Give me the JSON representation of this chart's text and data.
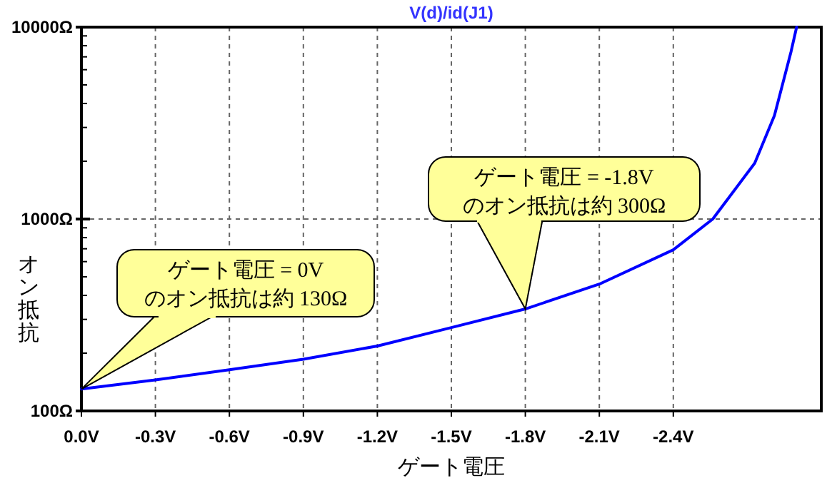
{
  "chart_data": {
    "type": "line",
    "title": "V(d)/id(J1)",
    "xlabel": "ゲート電圧",
    "ylabel": "オン抵抗",
    "x": [
      0,
      -0.3,
      -0.6,
      -0.9,
      -1.2,
      -1.5,
      -1.8,
      -2.1,
      -2.4,
      -2.56,
      -2.73,
      -2.81,
      -2.877,
      -2.9
    ],
    "series": [
      {
        "color": "#0000ff",
        "values": [
          130,
          145,
          164,
          186,
          218,
          272,
          340,
          458,
          691,
          1000,
          1955,
          3460,
          7410,
          10000
        ]
      }
    ],
    "xlim": [
      0,
      -3.0
    ],
    "xticks": [
      {
        "value": 0,
        "label": "0.0V"
      },
      {
        "value": -0.3,
        "label": "-0.3V"
      },
      {
        "value": -0.6,
        "label": "-0.6V"
      },
      {
        "value": -0.9,
        "label": "-0.9V"
      },
      {
        "value": -1.2,
        "label": "-1.2V"
      },
      {
        "value": -1.5,
        "label": "-1.5V"
      },
      {
        "value": -1.8,
        "label": "-1.8V"
      },
      {
        "value": -2.1,
        "label": "-2.1V"
      },
      {
        "value": -2.4,
        "label": "-2.4V"
      }
    ],
    "ylim": [
      100,
      10000
    ],
    "log": "y",
    "yticks": [
      {
        "value": 100,
        "label": "100Ω"
      },
      {
        "value": 1000,
        "label": "1000Ω"
      },
      {
        "value": 10000,
        "label": "10000Ω"
      }
    ],
    "grid": true,
    "annotations": [
      "ゲート電圧 = 0V\nのオン抵抗は約 130Ω",
      "ゲート電圧 = -1.8V\nのオン抵抗は約 300Ω"
    ]
  }
}
